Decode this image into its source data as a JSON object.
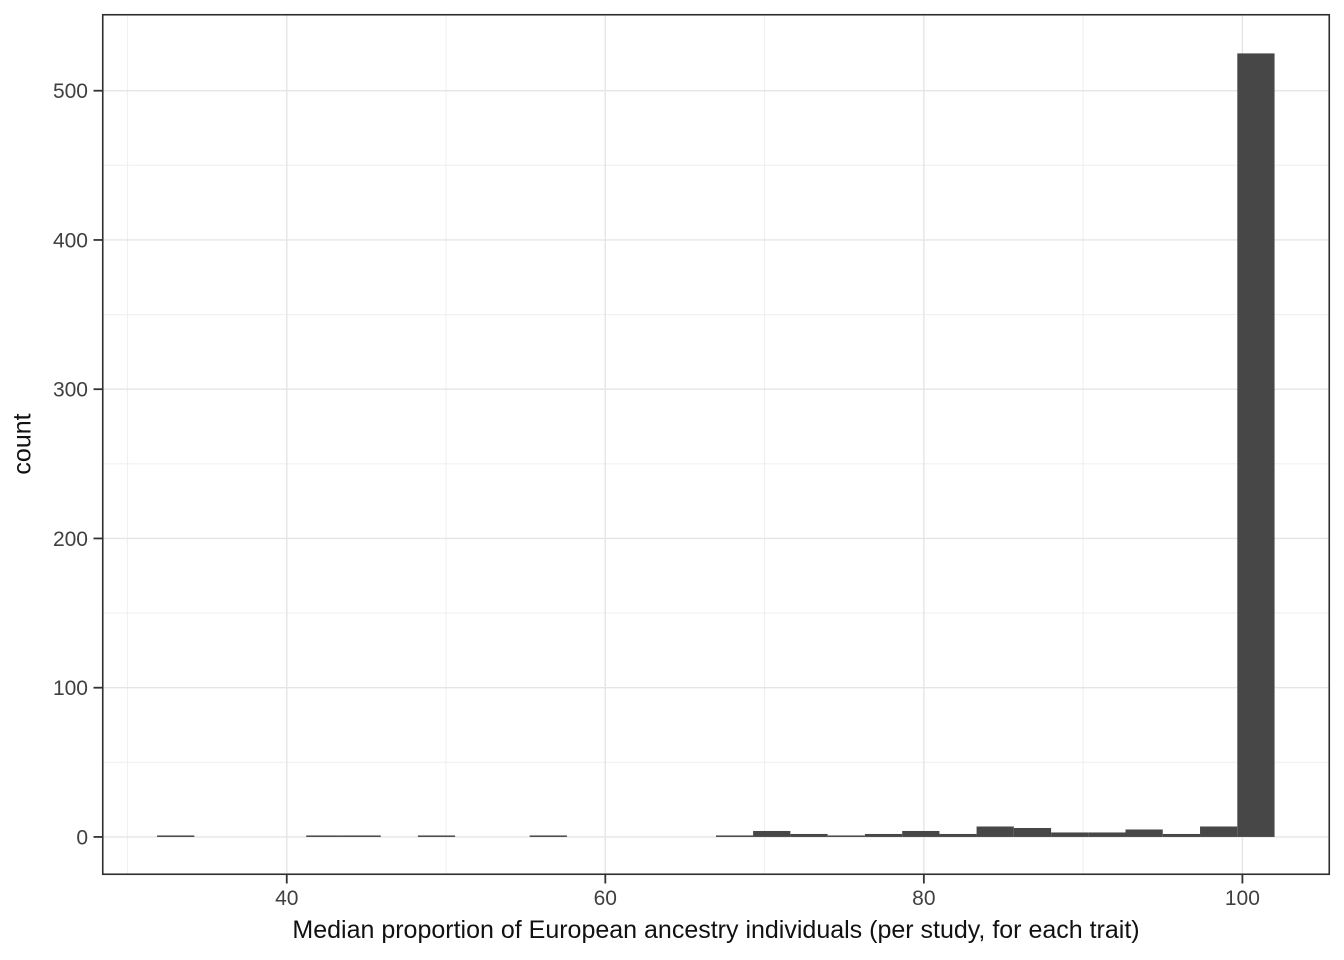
{
  "chart_data": {
    "type": "histogram",
    "title": "",
    "xlabel": "Median proportion of European ancestry individuals (per study, for each trait)",
    "ylabel": "count",
    "bar_color": "#474747",
    "bin_width": 2.339,
    "bins": [
      {
        "start": 31.86,
        "count": 1
      },
      {
        "start": 41.22,
        "count": 1
      },
      {
        "start": 43.56,
        "count": 1
      },
      {
        "start": 48.23,
        "count": 1
      },
      {
        "start": 55.25,
        "count": 1
      },
      {
        "start": 66.95,
        "count": 1
      },
      {
        "start": 69.28,
        "count": 4
      },
      {
        "start": 71.62,
        "count": 2
      },
      {
        "start": 73.96,
        "count": 1
      },
      {
        "start": 76.3,
        "count": 2
      },
      {
        "start": 78.64,
        "count": 4
      },
      {
        "start": 80.97,
        "count": 2
      },
      {
        "start": 83.31,
        "count": 7
      },
      {
        "start": 85.65,
        "count": 6
      },
      {
        "start": 87.99,
        "count": 3
      },
      {
        "start": 90.33,
        "count": 3
      },
      {
        "start": 92.66,
        "count": 5
      },
      {
        "start": 95.0,
        "count": 2
      },
      {
        "start": 97.34,
        "count": 7
      },
      {
        "start": 99.68,
        "count": 525
      }
    ],
    "x_ticks": [
      40,
      60,
      80,
      100
    ],
    "x_minor_gridlines": [
      30,
      50,
      70,
      90
    ],
    "y_ticks": [
      0,
      100,
      200,
      300,
      400,
      500
    ],
    "y_minor_gridlines": [
      50,
      150,
      250,
      350,
      450
    ],
    "xlim": [
      28.4,
      105.5
    ],
    "ylim": [
      -25.5,
      551.4
    ],
    "grid": true,
    "legend": "none",
    "theme": {
      "panel_background": "#ffffff",
      "panel_border": "#2e2e2e",
      "major_grid": "#e5e5e5",
      "minor_grid": "#f0f0f0",
      "tick_color": "#333333",
      "tick_label_color": "#404040",
      "axis_title_color": "#111111"
    }
  }
}
